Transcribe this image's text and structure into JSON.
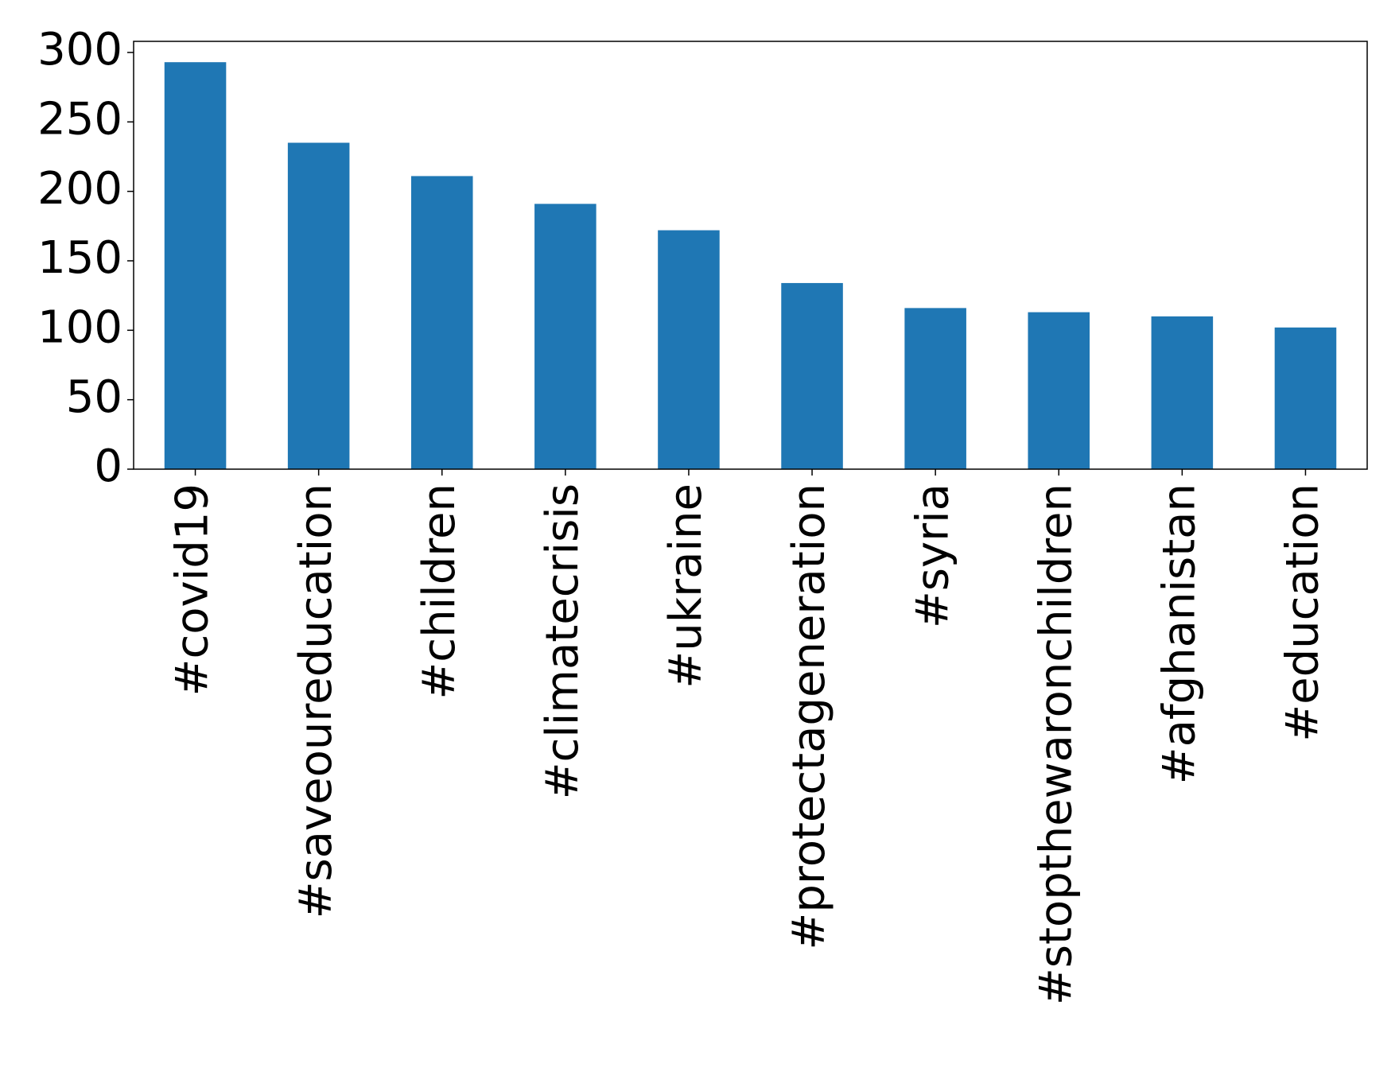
{
  "chart_data": {
    "type": "bar",
    "categories": [
      "#covid19",
      "#saveoureducation",
      "#children",
      "#climatecrisis",
      "#ukraine",
      "#protectageneration",
      "#syria",
      "#stopthewaronchildren",
      "#afghanistan",
      "#education"
    ],
    "values": [
      293,
      235,
      211,
      191,
      172,
      134,
      116,
      113,
      110,
      102
    ],
    "color": "#1f77b4",
    "ylim": [
      0,
      308
    ],
    "yticks": [
      0,
      50,
      100,
      150,
      200,
      250,
      300
    ],
    "grid": false
  }
}
